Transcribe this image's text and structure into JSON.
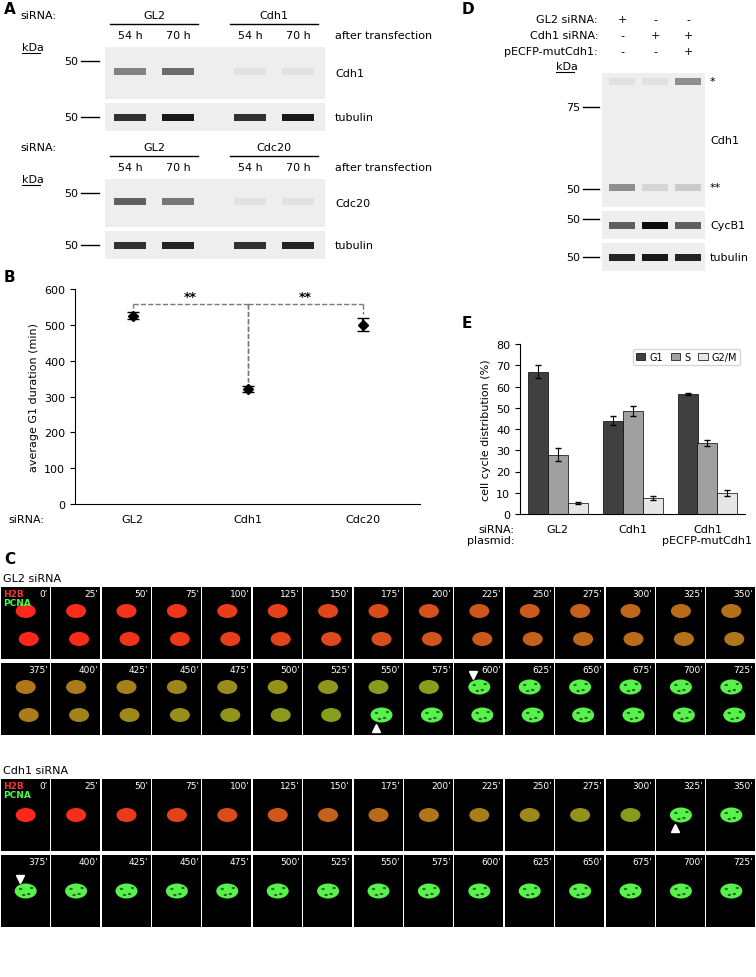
{
  "A": {
    "panel": "A",
    "blots": [
      {
        "siRNA_label": "siRNA:",
        "groups": [
          "GL2",
          "Cdh1"
        ],
        "timepoints": [
          "54 h",
          "70 h",
          "54 h",
          "70 h"
        ],
        "timepoint_note": "after transfection",
        "kDa": "kDa",
        "rows": [
          {
            "protein": "Cdh1",
            "marker_kDa": [
              50
            ],
            "bands": [
              0.45,
              0.55,
              0.05,
              0.05
            ]
          },
          {
            "protein": "tubulin",
            "marker_kDa": [
              50
            ],
            "bands": [
              0.8,
              0.9,
              0.8,
              0.9
            ]
          }
        ]
      },
      {
        "siRNA_label": "siRNA:",
        "groups": [
          "GL2",
          "Cdc20"
        ],
        "timepoints": [
          "54 h",
          "70 h",
          "54 h",
          "70 h"
        ],
        "timepoint_note": "after transfection",
        "kDa": "kDa",
        "rows": [
          {
            "protein": "Cdc20",
            "marker_kDa": [
              50
            ],
            "bands": [
              0.6,
              0.5,
              0.05,
              0.05
            ]
          },
          {
            "protein": "tubulin",
            "marker_kDa": [
              50
            ],
            "bands": [
              0.8,
              0.85,
              0.8,
              0.85
            ]
          }
        ]
      }
    ]
  },
  "chart_data": [
    {
      "panel": "B",
      "type": "scatter",
      "ylabel": "average G1 duration (min)",
      "x_row_label": "siRNA:",
      "categories": [
        "GL2",
        "Cdh1",
        "Cdc20"
      ],
      "values": [
        525,
        320,
        500
      ],
      "errors": [
        10,
        8,
        18
      ],
      "color": "#000000",
      "marker": "diamond",
      "ylim": [
        0,
        600
      ],
      "yticks": [
        0,
        100,
        200,
        300,
        400,
        500,
        600
      ],
      "annotations": [
        {
          "text": "**",
          "between": [
            "GL2",
            "Cdh1"
          ]
        },
        {
          "text": "**",
          "between": [
            "Cdh1",
            "Cdc20"
          ]
        }
      ]
    },
    {
      "panel": "E",
      "type": "bar",
      "ylabel": "cell cycle distribution (%)",
      "x_row_labels": [
        "siRNA:",
        "plasmid:"
      ],
      "categories": [
        "GL2",
        "Cdh1",
        "Cdh1"
      ],
      "plasmid": [
        null,
        null,
        "pECFP-mutCdh1"
      ],
      "series": [
        {
          "name": "G1",
          "color": "#404040",
          "values": [
            67,
            44,
            56.5
          ],
          "errors": [
            3,
            2,
            0.3
          ]
        },
        {
          "name": "S",
          "color": "#a0a0a0",
          "values": [
            28,
            48.5,
            33.5
          ],
          "errors": [
            3,
            2.5,
            1.5
          ]
        },
        {
          "name": "G2/M",
          "color": "#e6e6e6",
          "values": [
            5,
            7.5,
            10
          ],
          "errors": [
            0.5,
            1,
            1.5
          ]
        }
      ],
      "ylim": [
        0,
        80
      ],
      "yticks": [
        0,
        10,
        20,
        30,
        40,
        50,
        60,
        70,
        80
      ],
      "legend": "upper right"
    }
  ],
  "C": {
    "panel": "C",
    "channels": [
      {
        "name": "H2B",
        "color": "#ff3030"
      },
      {
        "name": "PCNA",
        "color": "#40ff40"
      }
    ],
    "frames": [
      "0'",
      "25'",
      "50'",
      "75'",
      "100'",
      "125'",
      "150'",
      "175'",
      "200'",
      "225'",
      "250'",
      "275'",
      "300'",
      "325'",
      "350'",
      "375'",
      "400'",
      "425'",
      "450'",
      "475'",
      "500'",
      "525'",
      "550'",
      "575'",
      "600'",
      "625'",
      "650'",
      "675'",
      "700'",
      "725'"
    ],
    "sequences": [
      {
        "title": "GL2 siRNA",
        "arrowheads": [
          "550'",
          "600'"
        ]
      },
      {
        "title": "Cdh1 siRNA",
        "arrowheads": [
          "325'",
          "375'"
        ]
      }
    ]
  },
  "D": {
    "panel": "D",
    "kDa": "kDa",
    "conditions": [
      {
        "label": "GL2 siRNA:",
        "signs": [
          "+",
          "-",
          "-"
        ]
      },
      {
        "label": "Cdh1 siRNA:",
        "signs": [
          "-",
          "+",
          "+"
        ]
      },
      {
        "label": "pECFP-mutCdh1:",
        "signs": [
          "-",
          "-",
          "+"
        ]
      }
    ],
    "rows": [
      {
        "protein": "Cdh1",
        "marker_kDa": [
          75,
          50
        ],
        "band_rows": [
          {
            "mark": "*",
            "bands": [
              0.05,
              0.05,
              0.4
            ]
          },
          {
            "mark": "**",
            "bands": [
              0.4,
              0.1,
              0.15
            ]
          }
        ]
      },
      {
        "protein": "CycB1",
        "marker_kDa": [
          50
        ],
        "bands": [
          0.6,
          0.95,
          0.6
        ]
      },
      {
        "protein": "tubulin",
        "marker_kDa": [
          50
        ],
        "bands": [
          0.85,
          0.9,
          0.85
        ]
      }
    ]
  }
}
